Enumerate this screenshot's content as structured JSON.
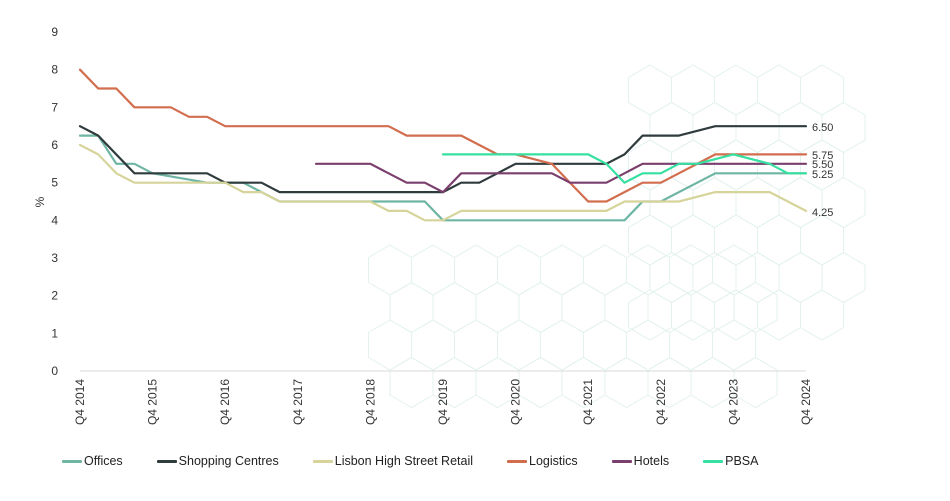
{
  "chart_data": {
    "type": "line",
    "title": "",
    "xlabel": "",
    "ylabel": "%",
    "ylim": [
      0,
      9
    ],
    "yticks": [
      0,
      1,
      2,
      3,
      4,
      5,
      6,
      7,
      8,
      9
    ],
    "xlim": [
      2014.75,
      2024.75
    ],
    "xticks": [
      {
        "x": 2014.75,
        "label": "Q4 2014"
      },
      {
        "x": 2015.75,
        "label": "Q4 2015"
      },
      {
        "x": 2016.75,
        "label": "Q4 2016"
      },
      {
        "x": 2017.75,
        "label": "Q4 2017"
      },
      {
        "x": 2018.75,
        "label": "Q4 2018"
      },
      {
        "x": 2019.75,
        "label": "Q4 2019"
      },
      {
        "x": 2020.75,
        "label": "Q4 2020"
      },
      {
        "x": 2021.75,
        "label": "Q4 2021"
      },
      {
        "x": 2022.75,
        "label": "Q4 2022"
      },
      {
        "x": 2023.75,
        "label": "Q4 2023"
      },
      {
        "x": 2024.75,
        "label": "Q4 2024"
      }
    ],
    "grid": false,
    "legend_position": "bottom",
    "series": [
      {
        "name": "Offices",
        "color": "#6fb5a3",
        "points": [
          [
            2014.75,
            6.25
          ],
          [
            2015.0,
            6.25
          ],
          [
            2015.25,
            5.5
          ],
          [
            2015.5,
            5.5
          ],
          [
            2015.75,
            5.25
          ],
          [
            2016.5,
            5.0
          ],
          [
            2017.0,
            5.0
          ],
          [
            2017.5,
            4.5
          ],
          [
            2019.5,
            4.5
          ],
          [
            2019.75,
            4.0
          ],
          [
            2021.75,
            4.0
          ],
          [
            2022.25,
            4.0
          ],
          [
            2022.5,
            4.5
          ],
          [
            2022.75,
            4.5
          ],
          [
            2023.5,
            5.25
          ],
          [
            2024.75,
            5.25
          ]
        ]
      },
      {
        "name": "Shopping Centres",
        "color": "#2f3b3d",
        "points": [
          [
            2014.75,
            6.5
          ],
          [
            2015.0,
            6.25
          ],
          [
            2015.5,
            5.25
          ],
          [
            2016.5,
            5.25
          ],
          [
            2016.75,
            5.0
          ],
          [
            2017.25,
            5.0
          ],
          [
            2017.5,
            4.75
          ],
          [
            2019.75,
            4.75
          ],
          [
            2020.0,
            5.0
          ],
          [
            2020.25,
            5.0
          ],
          [
            2020.5,
            5.25
          ],
          [
            2020.75,
            5.5
          ],
          [
            2022.0,
            5.5
          ],
          [
            2022.25,
            5.75
          ],
          [
            2022.5,
            6.25
          ],
          [
            2022.75,
            6.25
          ],
          [
            2023.0,
            6.25
          ],
          [
            2023.5,
            6.5
          ],
          [
            2024.75,
            6.5
          ]
        ]
      },
      {
        "name": "Lisbon High Street Retail",
        "color": "#d6d49a",
        "points": [
          [
            2014.75,
            6.0
          ],
          [
            2015.0,
            5.75
          ],
          [
            2015.25,
            5.25
          ],
          [
            2015.5,
            5.0
          ],
          [
            2016.75,
            5.0
          ],
          [
            2017.0,
            4.75
          ],
          [
            2017.25,
            4.75
          ],
          [
            2017.5,
            4.5
          ],
          [
            2018.75,
            4.5
          ],
          [
            2019.0,
            4.25
          ],
          [
            2019.25,
            4.25
          ],
          [
            2019.5,
            4.0
          ],
          [
            2019.75,
            4.0
          ],
          [
            2020.0,
            4.25
          ],
          [
            2022.0,
            4.25
          ],
          [
            2022.25,
            4.5
          ],
          [
            2023.0,
            4.5
          ],
          [
            2023.5,
            4.75
          ],
          [
            2024.25,
            4.75
          ],
          [
            2024.75,
            4.25
          ]
        ]
      },
      {
        "name": "Logistics",
        "color": "#d26d4e",
        "points": [
          [
            2014.75,
            8.0
          ],
          [
            2015.0,
            7.5
          ],
          [
            2015.25,
            7.5
          ],
          [
            2015.5,
            7.0
          ],
          [
            2016.0,
            7.0
          ],
          [
            2016.25,
            6.75
          ],
          [
            2016.5,
            6.75
          ],
          [
            2016.75,
            6.5
          ],
          [
            2018.75,
            6.5
          ],
          [
            2019.0,
            6.5
          ],
          [
            2019.25,
            6.25
          ],
          [
            2019.75,
            6.25
          ],
          [
            2020.0,
            6.25
          ],
          [
            2020.25,
            6.0
          ],
          [
            2020.5,
            5.75
          ],
          [
            2020.75,
            5.75
          ],
          [
            2021.25,
            5.5
          ],
          [
            2021.5,
            5.0
          ],
          [
            2021.75,
            4.5
          ],
          [
            2022.0,
            4.5
          ],
          [
            2022.5,
            5.0
          ],
          [
            2022.75,
            5.0
          ],
          [
            2023.5,
            5.75
          ],
          [
            2024.75,
            5.75
          ]
        ]
      },
      {
        "name": "Hotels",
        "color": "#7b3f6e",
        "points": [
          [
            2018.0,
            5.5
          ],
          [
            2018.75,
            5.5
          ],
          [
            2019.0,
            5.25
          ],
          [
            2019.25,
            5.0
          ],
          [
            2019.5,
            5.0
          ],
          [
            2019.75,
            4.75
          ],
          [
            2020.0,
            5.25
          ],
          [
            2020.25,
            5.25
          ],
          [
            2020.75,
            5.25
          ],
          [
            2021.0,
            5.25
          ],
          [
            2021.25,
            5.25
          ],
          [
            2021.5,
            5.0
          ],
          [
            2022.0,
            5.0
          ],
          [
            2022.25,
            5.25
          ],
          [
            2022.5,
            5.5
          ],
          [
            2024.75,
            5.5
          ]
        ]
      },
      {
        "name": "PBSA",
        "color": "#35e0a0",
        "points": [
          [
            2019.75,
            5.75
          ],
          [
            2021.75,
            5.75
          ],
          [
            2022.0,
            5.5
          ],
          [
            2022.25,
            5.0
          ],
          [
            2022.5,
            5.25
          ],
          [
            2022.75,
            5.25
          ],
          [
            2023.0,
            5.5
          ],
          [
            2023.25,
            5.5
          ],
          [
            2023.75,
            5.75
          ],
          [
            2024.25,
            5.5
          ],
          [
            2024.5,
            5.25
          ],
          [
            2024.75,
            5.25
          ]
        ]
      }
    ],
    "end_labels": [
      "6.50",
      "5.75",
      "5.50",
      "5.25",
      "4.25"
    ],
    "end_label_values": [
      6.5,
      5.75,
      5.5,
      5.25,
      4.25
    ]
  }
}
